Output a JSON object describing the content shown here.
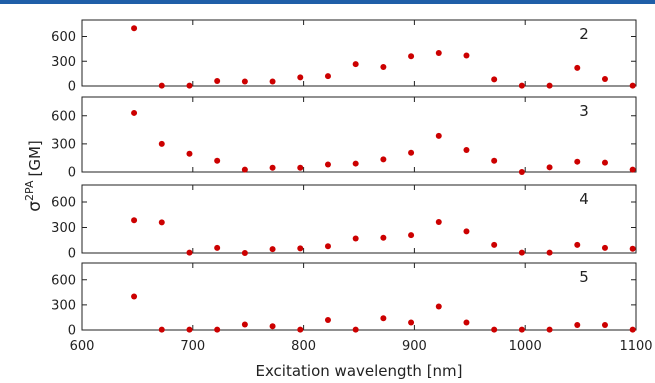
{
  "chart_data": {
    "type": "scatter",
    "xlabel": "Excitation wavelength [nm]",
    "ylabel_main": "σ",
    "ylabel_sup": "2PA",
    "ylabel_unit": "[GM]",
    "xlim": [
      600,
      1100
    ],
    "xticks": [
      "600",
      "700",
      "800",
      "900",
      "1000",
      "1100"
    ],
    "ylim": [
      0,
      800
    ],
    "yticks": [
      "0",
      "300",
      "600"
    ],
    "marker_color": "#cc0000",
    "x": [
      647,
      672,
      697,
      722,
      747,
      772,
      797,
      822,
      847,
      872,
      897,
      922,
      947,
      972,
      997,
      1022,
      1047,
      1072,
      1097
    ],
    "panels": [
      {
        "label": "2",
        "values": [
          700,
          5,
          5,
          60,
          55,
          55,
          105,
          120,
          265,
          230,
          360,
          400,
          370,
          80,
          5,
          5,
          220,
          85,
          5
        ]
      },
      {
        "label": "3",
        "values": [
          630,
          300,
          195,
          120,
          25,
          45,
          45,
          80,
          90,
          135,
          205,
          385,
          235,
          120,
          0,
          50,
          110,
          100,
          25
        ]
      },
      {
        "label": "4",
        "values": [
          385,
          360,
          5,
          60,
          0,
          45,
          55,
          80,
          170,
          180,
          210,
          365,
          255,
          95,
          5,
          5,
          95,
          60,
          50
        ]
      },
      {
        "label": "5",
        "values": [
          400,
          5,
          5,
          5,
          65,
          45,
          5,
          120,
          5,
          140,
          90,
          280,
          90,
          5,
          5,
          5,
          60,
          60,
          5
        ]
      }
    ]
  }
}
